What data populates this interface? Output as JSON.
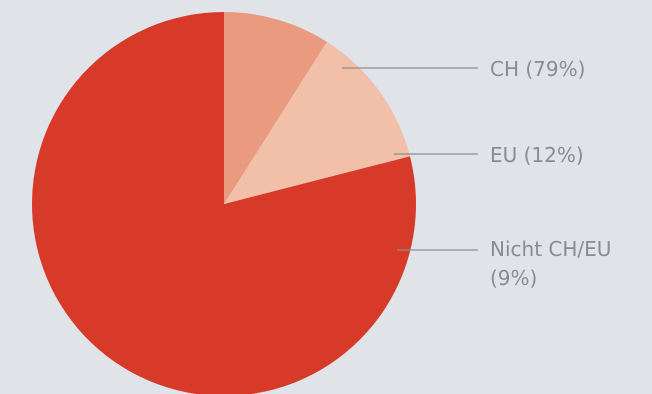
{
  "chart_data": {
    "type": "pie",
    "title": "",
    "slices": [
      {
        "label": "CH",
        "value": 79,
        "display_lines": [
          "CH (79%)"
        ],
        "color": "#d83a2a"
      },
      {
        "label": "EU",
        "value": 12,
        "display_lines": [
          "EU (12%)"
        ],
        "color": "#f2bfa9"
      },
      {
        "label": "Nicht CH/EU",
        "value": 9,
        "display_lines": [
          "Nicht CH/EU",
          "(9%)"
        ],
        "color": "#ea9a7e"
      }
    ],
    "start_angle_deg": -90,
    "direction": "counterclockwise",
    "legend": "none",
    "background_color": "#e0e3e8"
  }
}
